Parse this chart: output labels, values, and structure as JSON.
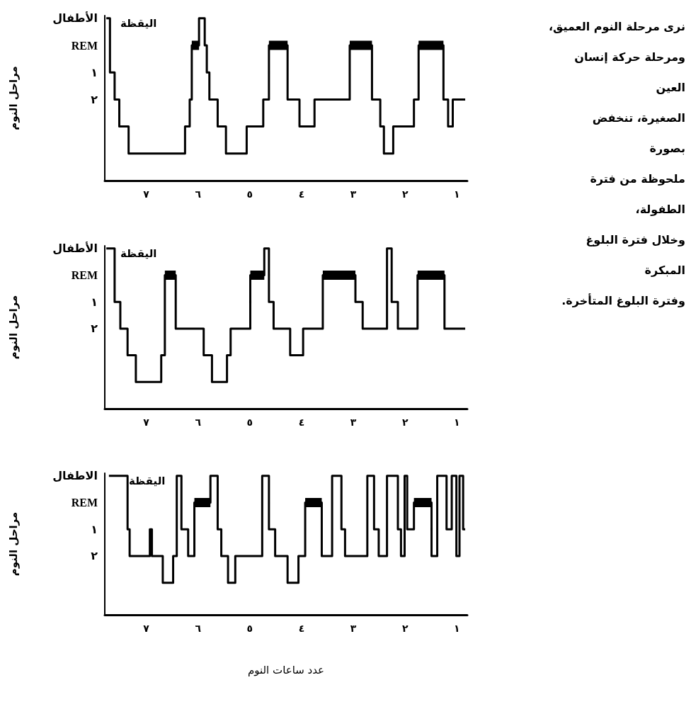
{
  "chart_data": [
    {
      "type": "step",
      "ylabel": "مراحل النوم",
      "xlim": [
        7.8,
        0.8
      ],
      "ylim": [
        5,
        -1.1
      ],
      "xticks": [
        {
          "value": 7,
          "label": "٧"
        },
        {
          "value": 6,
          "label": "٦"
        },
        {
          "value": 5,
          "label": "٥"
        },
        {
          "value": 4,
          "label": "٤"
        },
        {
          "value": 3,
          "label": "٣"
        },
        {
          "value": 2,
          "label": "٢"
        },
        {
          "value": 1,
          "label": "١"
        }
      ],
      "yticks": [
        {
          "value": 2,
          "label": "٢"
        },
        {
          "value": 1,
          "label": "١"
        },
        {
          "value": 0,
          "label": "REM"
        },
        {
          "value": -1,
          "label": "الأطفال"
        }
      ],
      "grid": false,
      "marker": "none",
      "annotations": [
        "اليقظة",
        "نرى مرحلة النوم العميق،\nومرحلة حركة إنسان\nالعين\nالصغيرة، تنخفض\nبصورة\nملحوظة من فترة\nالطفولة،\nوخلال فترة البلوغ\nالمبكرة\nوفترة البلوغ المتأخرة."
      ],
      "series": [
        {
          "color": "#000000",
          "x": [
            7.77,
            7.7,
            7.61,
            7.52,
            7.34,
            6.25,
            6.16,
            6.12,
            5.98,
            5.87,
            5.83,
            5.78,
            5.62,
            5.46,
            5.06,
            4.74,
            4.63,
            4.27,
            4.04,
            3.75,
            3.07,
            2.64,
            2.48,
            2.41,
            2.23,
            1.83,
            1.74,
            1.26,
            1.17,
            1.08,
            0.84
          ],
          "values": [
            -1,
            1,
            2,
            3,
            4,
            3,
            2,
            0,
            -1,
            0,
            1,
            2,
            3,
            4,
            3,
            2,
            0,
            2,
            3,
            2,
            0,
            2,
            3,
            4,
            3,
            2,
            0,
            2,
            3,
            2,
            2
          ]
        },
        {
          "type": "line",
          "color": "#000000",
          "x": [
            6.12,
            5.98
          ],
          "values": [
            0,
            0
          ]
        },
        {
          "type": "line",
          "color": "#000000",
          "x": [
            4.63,
            4.27
          ],
          "values": [
            0,
            0
          ]
        },
        {
          "type": "line",
          "color": "#000000",
          "x": [
            3.07,
            2.64
          ],
          "values": [
            0,
            0
          ]
        },
        {
          "type": "line",
          "color": "#000000",
          "x": [
            1.74,
            1.26
          ],
          "values": [
            0,
            0
          ]
        }
      ]
    },
    {
      "type": "step",
      "ylabel": "مراحل النوم",
      "xlim": [
        7.8,
        0.8
      ],
      "ylim": [
        5,
        -1.1
      ],
      "xticks": [
        {
          "value": 7,
          "label": "٧"
        },
        {
          "value": 6,
          "label": "٦"
        },
        {
          "value": 5,
          "label": "٥"
        },
        {
          "value": 4,
          "label": "٤"
        },
        {
          "value": 3,
          "label": "٣"
        },
        {
          "value": 2,
          "label": "٢"
        },
        {
          "value": 1,
          "label": "١"
        }
      ],
      "yticks": [
        {
          "value": 2,
          "label": "٢"
        },
        {
          "value": 1,
          "label": "١"
        },
        {
          "value": 0,
          "label": "REM"
        },
        {
          "value": -1,
          "label": "الأطفال"
        }
      ],
      "grid": false,
      "marker": "none",
      "annotations": [
        "اليقظة"
      ],
      "series": [
        {
          "color": "#000000",
          "x": [
            7.77,
            7.61,
            7.5,
            7.36,
            7.2,
            6.71,
            6.64,
            6.43,
            5.89,
            5.73,
            5.44,
            5.37,
            4.99,
            4.72,
            4.63,
            4.54,
            4.22,
            3.97,
            3.59,
            2.96,
            2.82,
            2.35,
            2.26,
            2.14,
            1.76,
            1.24,
            0.84
          ],
          "values": [
            -1,
            1,
            2,
            3,
            4,
            3,
            0,
            2,
            3,
            4,
            3,
            2,
            0,
            -1,
            1,
            2,
            3,
            2,
            0,
            1,
            2,
            -1,
            1,
            2,
            0,
            2,
            2
          ]
        },
        {
          "type": "line",
          "color": "#000000",
          "x": [
            6.64,
            6.43
          ],
          "values": [
            0,
            0
          ]
        },
        {
          "type": "line",
          "color": "#000000",
          "x": [
            4.99,
            4.72
          ],
          "values": [
            0,
            0
          ]
        },
        {
          "type": "line",
          "color": "#000000",
          "x": [
            3.59,
            2.96
          ],
          "values": [
            0,
            0
          ]
        },
        {
          "type": "line",
          "color": "#000000",
          "x": [
            1.76,
            1.24
          ],
          "values": [
            0,
            0
          ]
        }
      ]
    },
    {
      "type": "step",
      "ylabel": "مراحل النوم",
      "xlabel": "عدد ساعات النوم",
      "xlim": [
        7.8,
        0.8
      ],
      "ylim": [
        4.2,
        -1.1
      ],
      "xticks": [
        {
          "value": 7,
          "label": "٧"
        },
        {
          "value": 6,
          "label": "٦"
        },
        {
          "value": 5,
          "label": "٥"
        },
        {
          "value": 4,
          "label": "٤"
        },
        {
          "value": 3,
          "label": "٣"
        },
        {
          "value": 2,
          "label": "٢"
        },
        {
          "value": 1,
          "label": "١"
        }
      ],
      "yticks": [
        {
          "value": 2,
          "label": "٢"
        },
        {
          "value": 1,
          "label": "١"
        },
        {
          "value": 0,
          "label": "REM"
        },
        {
          "value": -1,
          "label": "الاطفال"
        }
      ],
      "grid": false,
      "marker": "none",
      "annotations": [
        "اليقظة"
      ],
      "series": [
        {
          "color": "#000000",
          "x": [
            7.72,
            7.36,
            7.32,
            6.93,
            6.89,
            6.68,
            6.48,
            6.41,
            6.32,
            6.19,
            6.07,
            5.76,
            5.62,
            5.55,
            5.42,
            5.28,
            4.76,
            4.63,
            4.51,
            4.27,
            4.06,
            3.93,
            3.61,
            3.41,
            3.23,
            3.16,
            2.73,
            2.6,
            2.51,
            2.35,
            2.14,
            2.08,
            2.01,
            1.96,
            1.83,
            1.49,
            1.38,
            1.2,
            1.1,
            1.01,
            0.95,
            0.88,
            0.84
          ],
          "values": [
            -1,
            1,
            2,
            1,
            2,
            3,
            2,
            -1,
            1,
            2,
            0,
            -1,
            1,
            2,
            3,
            2,
            -1,
            1,
            2,
            3,
            2,
            0,
            2,
            -1,
            1,
            2,
            -1,
            1,
            2,
            -1,
            1,
            2,
            -1,
            1,
            0,
            2,
            -1,
            1,
            -1,
            2,
            -1,
            1,
            1
          ]
        },
        {
          "type": "line",
          "color": "#000000",
          "x": [
            6.07,
            5.76
          ],
          "values": [
            0,
            0
          ]
        },
        {
          "type": "line",
          "color": "#000000",
          "x": [
            3.93,
            3.61
          ],
          "values": [
            0,
            0
          ]
        },
        {
          "type": "line",
          "color": "#000000",
          "x": [
            1.83,
            1.49
          ],
          "values": [
            0,
            0
          ]
        }
      ]
    }
  ]
}
